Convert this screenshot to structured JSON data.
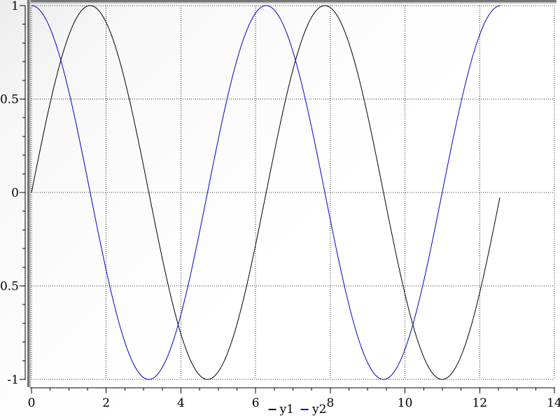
{
  "chart_data": {
    "type": "line",
    "title": "",
    "xlabel": "",
    "ylabel": "",
    "xlim": [
      0,
      14
    ],
    "ylim": [
      -1,
      1
    ],
    "x_major_ticks": [
      0,
      2,
      4,
      6,
      8,
      10,
      12,
      14
    ],
    "x_tick_labels": [
      "0",
      "2",
      "4",
      "6",
      "8",
      "10",
      "12",
      "14"
    ],
    "x_minor_tick_step": 0.5,
    "y_major_ticks": [
      -1,
      -0.5,
      0,
      0.5,
      1
    ],
    "y_tick_labels": [
      "-1",
      "-0.5",
      "0",
      "0.5",
      "1"
    ],
    "y_minor_tick_step": 0.1,
    "grid": "dotted",
    "legend_position": "bottom-center",
    "series": [
      {
        "name": "y1",
        "color": "#000000",
        "function": "sin(x)",
        "x_start": 0,
        "x_end": 12.566
      },
      {
        "name": "y2",
        "color": "#0000cd",
        "function": "cos(x)",
        "x_start": 0,
        "x_end": 12.566
      }
    ]
  },
  "legend": {
    "items": [
      {
        "label": "y1",
        "color": "#000000"
      },
      {
        "label": "y2",
        "color": "#0000cd"
      }
    ]
  },
  "colors": {
    "curve_y1": "#000000",
    "curve_y2": "#0000cd",
    "frame_dark": "#757575",
    "frame_light": "#bcbcbc",
    "axis": "#000000",
    "grid_dots": "#333333",
    "background": "#ffffff"
  }
}
